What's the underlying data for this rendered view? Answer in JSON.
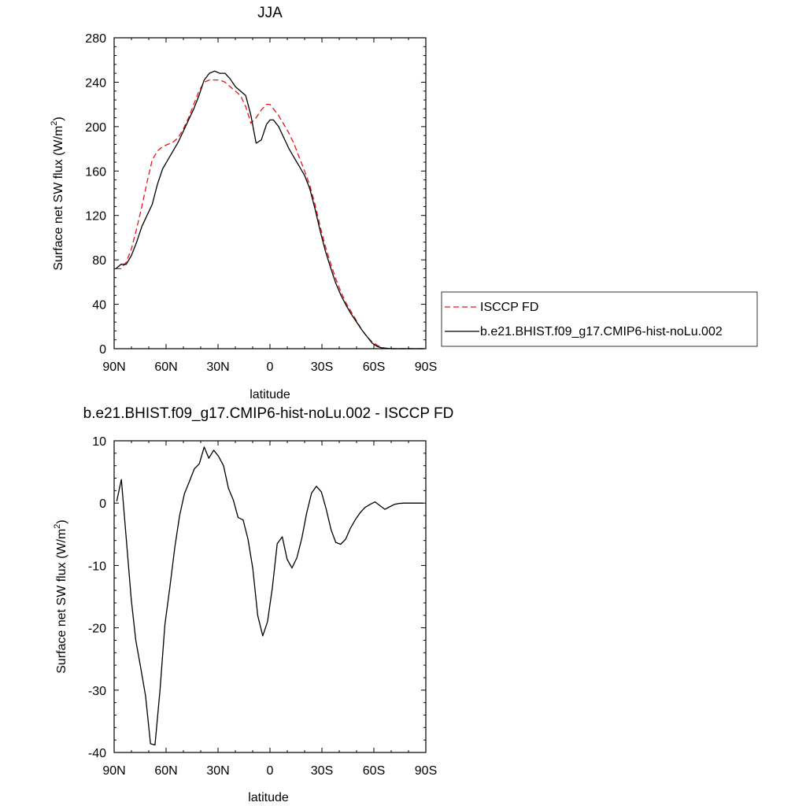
{
  "chart_data": [
    {
      "type": "line",
      "title": "JJA",
      "xlabel": "latitude",
      "ylabel": "Surface net SW flux (W/m",
      "ylabel_sup": "2",
      "ylabel_tail": ")",
      "xlim": [
        90,
        -90
      ],
      "ylim": [
        0,
        280
      ],
      "x_tick_values": [
        90,
        60,
        30,
        0,
        -30,
        -60,
        -90
      ],
      "x_tick_labels": [
        "90N",
        "60N",
        "30N",
        "0",
        "30S",
        "60S",
        "90S"
      ],
      "y_tick_values": [
        0,
        40,
        80,
        120,
        160,
        200,
        240,
        280
      ],
      "y_tick_labels": [
        "0",
        "40",
        "80",
        "120",
        "160",
        "200",
        "240",
        "280"
      ],
      "legend_position": "right",
      "series": [
        {
          "name": "ISCCP FD",
          "color": "#e8141a",
          "dash": "dashed",
          "x": [
            89,
            86,
            83,
            80,
            77,
            74,
            71,
            68,
            65,
            62,
            59,
            56,
            53,
            50,
            47,
            44,
            41,
            38,
            35,
            32,
            29,
            26,
            23,
            20,
            17,
            14,
            11,
            8,
            5,
            2,
            0,
            -2,
            -5,
            -8,
            -11,
            -14,
            -17,
            -20,
            -23,
            -26,
            -29,
            -32,
            -35,
            -38,
            -41,
            -44,
            -47,
            -50,
            -53,
            -56,
            -59,
            -62,
            -65,
            -68,
            -71,
            -74,
            -77,
            -80,
            -83,
            -86,
            -89
          ],
          "y": [
            72,
            72,
            78,
            90,
            108,
            128,
            150,
            170,
            178,
            182,
            184,
            186,
            190,
            198,
            208,
            220,
            232,
            240,
            242,
            242,
            242,
            240,
            236,
            232,
            228,
            218,
            203,
            208,
            215,
            220,
            220,
            216,
            210,
            202,
            194,
            184,
            172,
            160,
            147,
            130,
            110,
            92,
            77,
            63,
            51,
            41,
            33,
            25,
            17,
            11,
            6,
            3,
            1,
            0.3,
            0,
            0,
            0,
            0,
            0,
            0,
            0
          ]
        },
        {
          "name": "b.e21.BHIST.f09_g17.CMIP6-hist-noLu.002",
          "color": "#000000",
          "dash": "solid",
          "x": [
            89,
            86,
            83,
            80,
            77,
            74,
            71,
            68,
            65,
            62,
            59,
            56,
            53,
            50,
            47,
            44,
            41,
            38,
            35,
            32,
            29,
            26,
            23,
            20,
            17,
            14,
            11,
            8,
            5,
            2,
            0,
            -2,
            -5,
            -8,
            -11,
            -14,
            -17,
            -20,
            -23,
            -26,
            -29,
            -32,
            -35,
            -38,
            -41,
            -44,
            -47,
            -50,
            -53,
            -56,
            -59,
            -62,
            -65,
            -68,
            -71,
            -74,
            -77,
            -80,
            -83,
            -86,
            -89
          ],
          "y": [
            72,
            76,
            76,
            84,
            96,
            110,
            120,
            130,
            148,
            162,
            170,
            178,
            186,
            196,
            206,
            216,
            228,
            242,
            248,
            250,
            248,
            248,
            243,
            236,
            232,
            228,
            210,
            185,
            188,
            202,
            206,
            206,
            200,
            190,
            180,
            172,
            164,
            156,
            144,
            126,
            106,
            88,
            73,
            59,
            48,
            39,
            31,
            24,
            17,
            11,
            5,
            2,
            0.6,
            0.2,
            0,
            0,
            0,
            0,
            0,
            0,
            0
          ]
        }
      ]
    },
    {
      "type": "line",
      "title": "b.e21.BHIST.f09_g17.CMIP6-hist-noLu.002 - ISCCP FD",
      "xlabel": "latitude",
      "ylabel": "Surface net SW flux (W/m",
      "ylabel_sup": "2",
      "ylabel_tail": ")",
      "xlim": [
        90,
        -90
      ],
      "ylim": [
        -40,
        10
      ],
      "x_tick_values": [
        90,
        60,
        30,
        0,
        -30,
        -60,
        -90
      ],
      "x_tick_labels": [
        "90N",
        "60N",
        "30N",
        "0",
        "30S",
        "60S",
        "90S"
      ],
      "y_tick_values": [
        -40,
        -30,
        -20,
        -10,
        0,
        10
      ],
      "y_tick_labels": [
        "-40",
        "-30",
        "-20",
        "-10",
        "0",
        "10"
      ],
      "series": [
        {
          "color": "#000000",
          "dash": "solid",
          "x": [
            88.5,
            85.8,
            82.9,
            80.1,
            77.5,
            74.6,
            71.8,
            69.0,
            66.4,
            63.5,
            60.7,
            57.8,
            54.9,
            52.2,
            49.4,
            46.5,
            43.7,
            40.8,
            38.0,
            35.3,
            32.5,
            29.7,
            26.8,
            24.0,
            21.2,
            18.4,
            15.5,
            12.7,
            9.9,
            7.1,
            4.2,
            1.4,
            -1.4,
            -4.2,
            -7.1,
            -9.9,
            -12.7,
            -15.5,
            -18.4,
            -21.2,
            -24.0,
            -26.8,
            -29.7,
            -32.5,
            -35.3,
            -38.0,
            -40.8,
            -43.7,
            -46.5,
            -49.4,
            -52.2,
            -54.9,
            -57.8,
            -60.7,
            -63.5,
            -66.4,
            -69.0,
            -71.8,
            -74.6,
            -77.5,
            -80.1,
            -82.9,
            -85.8,
            -88.5
          ],
          "y": [
            0.3,
            3.8,
            -6.0,
            -15.5,
            -22.0,
            -26.5,
            -31.0,
            -38.6,
            -38.8,
            -30.0,
            -19.5,
            -13.5,
            -7.0,
            -2.0,
            1.5,
            3.5,
            5.5,
            6.3,
            9.0,
            7.2,
            8.5,
            7.5,
            6.0,
            2.4,
            0.5,
            -2.3,
            -2.7,
            -5.8,
            -10.5,
            -18.0,
            -21.3,
            -19.0,
            -13.5,
            -6.5,
            -5.4,
            -9.0,
            -10.4,
            -8.8,
            -5.6,
            -1.6,
            1.6,
            2.7,
            1.8,
            -1.0,
            -4.3,
            -6.3,
            -6.6,
            -5.8,
            -4.0,
            -2.6,
            -1.5,
            -0.7,
            -0.2,
            0.2,
            -0.4,
            -1.0,
            -0.6,
            -0.2,
            -0.05,
            0,
            0,
            0,
            0,
            0
          ]
        }
      ]
    }
  ]
}
